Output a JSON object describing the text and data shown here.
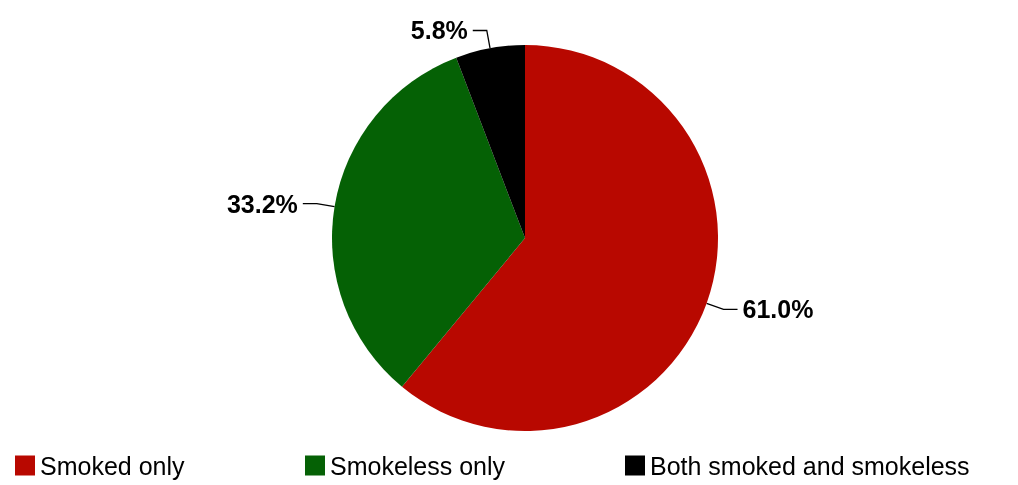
{
  "chart_data": {
    "type": "pie",
    "categories": [
      "Smoked only",
      "Smokeless only",
      "Both smoked and smokeless"
    ],
    "values": [
      61.0,
      33.2,
      5.8
    ],
    "colors": [
      "#b80800",
      "#056105",
      "#000000"
    ],
    "value_labels": [
      "61.0%",
      "33.2%",
      "5.8%"
    ],
    "legend": "bottom"
  }
}
